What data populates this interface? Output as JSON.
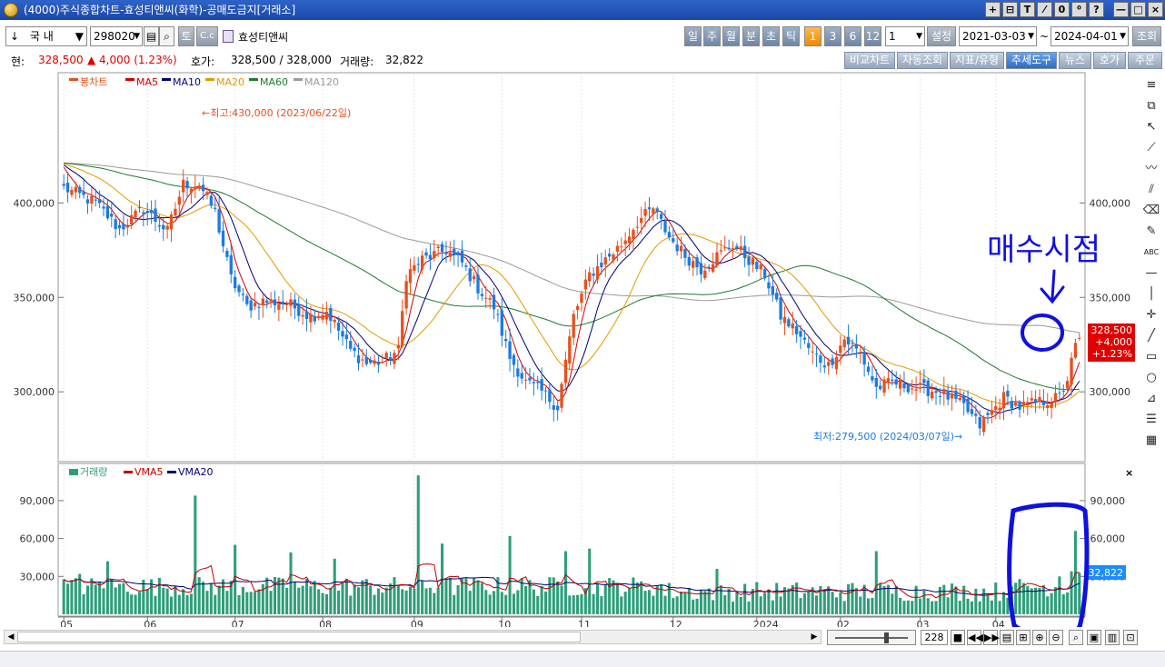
{
  "window": {
    "title": "(4000)주식종합차트-효성티앤씨(화학)-공매도금지[거래소]",
    "buttons": [
      "+",
      "⊟",
      "T",
      "⁄",
      "0",
      "⁰",
      "?",
      "—",
      "□",
      "×"
    ]
  },
  "toolbar": {
    "market_dropdown": "국    내",
    "stock_code": "298020",
    "btn_to": "토",
    "btn_cc": "C.c",
    "stock_name": "효성티앤씨",
    "periods": [
      "일",
      "주",
      "월",
      "분",
      "초",
      "틱",
      "1",
      "3",
      "6",
      "12"
    ],
    "active_period": "1",
    "count_value": "1",
    "settings_label": "설정",
    "start_date": "2021-03-03",
    "tilde": "~",
    "end_date": "2024-04-01",
    "query_label": "조회"
  },
  "info": {
    "current_label": "현:",
    "current_value": "328,500",
    "change": "▲ 4,000 (1.23%)",
    "quote_label": "호가:",
    "quote_value": "328,500 / 328,000",
    "volume_label": "거래량:",
    "volume_value": "32,822"
  },
  "right_tabs": [
    "비교차트",
    "자동조회",
    "지표/유형",
    "추세도구",
    "뉴스",
    "호가",
    "주문"
  ],
  "right_tab_active": "추세도구",
  "bottom": {
    "count_field": "228"
  },
  "tool_icons": [
    "collapse-icon",
    "layout-icon",
    "cursor-icon",
    "trend-line-icon",
    "zigzag-icon",
    "parallel-icon",
    "eraser-icon",
    "text-line-icon",
    "abc-icon",
    "horizontal-line-icon",
    "vertical-line-icon",
    "crosshair-icon",
    "diagonal-icon",
    "rectangle-icon",
    "circle-icon",
    "fan-icon",
    "fibo-icon",
    "gann-icon"
  ],
  "chart_data": {
    "type": "candlestick",
    "price_panel": {
      "legend": [
        {
          "name": "봉차트",
          "color": "#e8501e"
        },
        {
          "name": "MA5",
          "color": "#d40000"
        },
        {
          "name": "MA10",
          "color": "#00007a"
        },
        {
          "name": "MA20",
          "color": "#e39a00"
        },
        {
          "name": "MA60",
          "color": "#1e7a2c"
        },
        {
          "name": "MA120",
          "color": "#9a9a9a"
        }
      ],
      "y_ticks": [
        "400,000",
        "350,000",
        "300,000"
      ],
      "y_tick_values": [
        400000,
        350000,
        300000
      ],
      "ylim": [
        264000,
        468000
      ],
      "high_annotation": "←최고:430,000 (2023/06/22일)",
      "low_annotation": "최저:279,500 (2024/03/07일)→",
      "last_price_box": [
        "328,500",
        "+4,000",
        "+1.23%"
      ],
      "handwritten_annotation": "매수시점",
      "up_color": "#e8501e",
      "down_color": "#1c7be0",
      "anchors_close": [
        [
          0,
          408000
        ],
        [
          8,
          400000
        ],
        [
          14,
          386000
        ],
        [
          20,
          397000
        ],
        [
          26,
          385000
        ],
        [
          30,
          410000
        ],
        [
          34,
          410000
        ],
        [
          38,
          395000
        ],
        [
          42,
          360000
        ],
        [
          46,
          345000
        ],
        [
          50,
          348000
        ],
        [
          56,
          347000
        ],
        [
          62,
          340000
        ],
        [
          66,
          343000
        ],
        [
          72,
          322000
        ],
        [
          76,
          315000
        ],
        [
          80,
          316000
        ],
        [
          84,
          322000
        ],
        [
          86,
          362000
        ],
        [
          90,
          370000
        ],
        [
          96,
          375000
        ],
        [
          100,
          368000
        ],
        [
          104,
          355000
        ],
        [
          108,
          345000
        ],
        [
          112,
          318000
        ],
        [
          116,
          305000
        ],
        [
          120,
          300000
        ],
        [
          124,
          292000
        ],
        [
          128,
          340000
        ],
        [
          132,
          362000
        ],
        [
          136,
          370000
        ],
        [
          140,
          378000
        ],
        [
          144,
          390000
        ],
        [
          148,
          397000
        ],
        [
          152,
          382000
        ],
        [
          156,
          372000
        ],
        [
          160,
          365000
        ],
        [
          164,
          372000
        ],
        [
          168,
          378000
        ],
        [
          172,
          370000
        ],
        [
          176,
          362000
        ],
        [
          180,
          340000
        ],
        [
          184,
          332000
        ],
        [
          188,
          320000
        ],
        [
          192,
          314000
        ],
        [
          196,
          328000
        ],
        [
          200,
          320000
        ],
        [
          204,
          302000
        ],
        [
          208,
          305000
        ],
        [
          214,
          302000
        ],
        [
          220,
          300000
        ],
        [
          226,
          292000
        ],
        [
          230,
          282000
        ],
        [
          236,
          297000
        ],
        [
          240,
          292000
        ],
        [
          246,
          295000
        ],
        [
          250,
          297000
        ],
        [
          252,
          307000
        ],
        [
          254,
          324000
        ],
        [
          255,
          328500
        ]
      ],
      "volume_panel_placeholder": true
    },
    "volume_panel": {
      "legend": [
        {
          "name": "거래량",
          "color": "#2e9e7a"
        },
        {
          "name": "VMA5",
          "color": "#c00000"
        },
        {
          "name": "VMA20",
          "color": "#00007a"
        }
      ],
      "y_ticks": [
        "90,000",
        "60,000",
        "30,000"
      ],
      "y_tick_values": [
        90000,
        60000,
        30000
      ],
      "ylim": [
        0,
        118000
      ],
      "last_volume_box": "32,822",
      "spikes": [
        [
          4,
          32000
        ],
        [
          11,
          42000
        ],
        [
          33,
          94000
        ],
        [
          43,
          55000
        ],
        [
          57,
          49000
        ],
        [
          68,
          44000
        ],
        [
          89,
          110000
        ],
        [
          95,
          56000
        ],
        [
          112,
          62000
        ],
        [
          126,
          50000
        ],
        [
          132,
          52000
        ],
        [
          164,
          36000
        ],
        [
          204,
          50000
        ],
        [
          224,
          22000
        ],
        [
          238,
          22000
        ],
        [
          250,
          30000
        ],
        [
          253,
          34000
        ],
        [
          254,
          66000
        ],
        [
          255,
          32822
        ]
      ]
    },
    "x_ticks": [
      {
        "label": "05",
        "index": 0
      },
      {
        "label": "06",
        "index": 21
      },
      {
        "label": "07",
        "index": 43
      },
      {
        "label": "08",
        "index": 65
      },
      {
        "label": "09",
        "index": 88
      },
      {
        "label": "10",
        "index": 110
      },
      {
        "label": "11",
        "index": 130
      },
      {
        "label": "12",
        "index": 153
      },
      {
        "label": "2024",
        "index": 174
      },
      {
        "label": "02",
        "index": 195
      },
      {
        "label": "03",
        "index": 215
      },
      {
        "label": "04",
        "index": 234
      }
    ],
    "n_bars": 256
  }
}
